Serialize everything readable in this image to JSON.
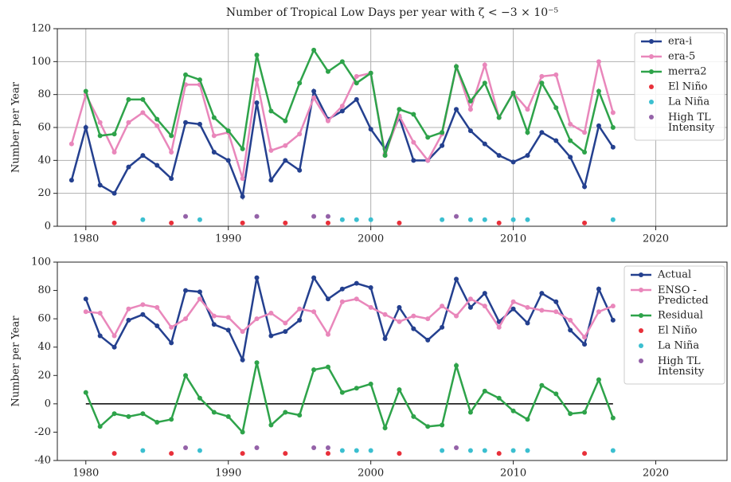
{
  "chart_data": [
    {
      "type": "line",
      "title": "Number of Tropical Low Days per year with ζ < −3 × 10⁻⁵",
      "ylabel": "Number per Year",
      "xlim": [
        1978,
        2025
      ],
      "xticks": [
        1980,
        1990,
        2000,
        2010,
        2020
      ],
      "ylim": [
        0,
        120
      ],
      "yticks": [
        0,
        20,
        40,
        60,
        80,
        100,
        120
      ],
      "grid": true,
      "legend": "upper right",
      "series": [
        {
          "name": "era-i",
          "type": "line",
          "color": "#24408f",
          "x": [
            1979,
            1980,
            1981,
            1982,
            1983,
            1984,
            1985,
            1986,
            1987,
            1988,
            1989,
            1990,
            1991,
            1992,
            1993,
            1994,
            1995,
            1996,
            1997,
            1998,
            1999,
            2000,
            2001,
            2002,
            2003,
            2004,
            2005,
            2006,
            2007,
            2008,
            2009,
            2010,
            2011,
            2012,
            2013,
            2014,
            2015,
            2016,
            2017
          ],
          "values": [
            28,
            60,
            25,
            20,
            36,
            43,
            37,
            29,
            63,
            62,
            45,
            40,
            18,
            75,
            28,
            40,
            34,
            82,
            65,
            70,
            77,
            59,
            47,
            66,
            40,
            40,
            49,
            71,
            58,
            50,
            43,
            39,
            43,
            57,
            52,
            42,
            24,
            61,
            48
          ]
        },
        {
          "name": "era-5",
          "type": "line",
          "color": "#e987bb",
          "x": [
            1979,
            1980,
            1981,
            1982,
            1983,
            1984,
            1985,
            1986,
            1987,
            1988,
            1989,
            1990,
            1991,
            1992,
            1993,
            1994,
            1995,
            1996,
            1997,
            1998,
            1999,
            2000,
            2001,
            2002,
            2003,
            2004,
            2005,
            2006,
            2007,
            2008,
            2009,
            2010,
            2011,
            2012,
            2013,
            2014,
            2015,
            2016,
            2017
          ],
          "values": [
            50,
            80,
            63,
            45,
            63,
            69,
            61,
            45,
            86,
            86,
            55,
            57,
            29,
            89,
            46,
            49,
            56,
            78,
            64,
            73,
            91,
            93,
            44,
            67,
            51,
            40,
            56,
            97,
            71,
            98,
            66,
            81,
            71,
            91,
            92,
            62,
            57,
            100,
            69
          ]
        },
        {
          "name": "merra2",
          "type": "line",
          "color": "#2ea34a",
          "x": [
            1980,
            1981,
            1982,
            1983,
            1984,
            1985,
            1986,
            1987,
            1988,
            1989,
            1990,
            1991,
            1992,
            1993,
            1994,
            1995,
            1996,
            1997,
            1998,
            1999,
            2000,
            2001,
            2002,
            2003,
            2004,
            2005,
            2006,
            2007,
            2008,
            2009,
            2010,
            2011,
            2012,
            2013,
            2014,
            2015,
            2016,
            2017
          ],
          "values": [
            82,
            55,
            56,
            77,
            77,
            65,
            55,
            92,
            89,
            66,
            58,
            47,
            104,
            70,
            64,
            87,
            107,
            94,
            100,
            87,
            93,
            43,
            71,
            68,
            54,
            57,
            97,
            76,
            87,
            66,
            81,
            57,
            87,
            72,
            52,
            45,
            82,
            60
          ]
        },
        {
          "name": "El Niño",
          "type": "scatter",
          "color": "#e8303a",
          "x": [
            1982,
            1986,
            1991,
            1994,
            1997,
            2002,
            2009,
            2015
          ],
          "values": [
            2,
            2,
            2,
            2,
            2,
            2,
            2,
            2
          ]
        },
        {
          "name": "La Niña",
          "type": "scatter",
          "color": "#3bbfd0",
          "x": [
            1984,
            1988,
            1998,
            1999,
            2000,
            2005,
            2007,
            2008,
            2010,
            2011,
            2017
          ],
          "values": [
            4,
            4,
            4,
            4,
            4,
            4,
            4,
            4,
            4,
            4,
            4
          ]
        },
        {
          "name": "High TL\nIntensity",
          "type": "scatter",
          "color": "#9462a8",
          "x": [
            1987,
            1992,
            1996,
            1997,
            2006
          ],
          "values": [
            6,
            6,
            6,
            6,
            6
          ]
        }
      ]
    },
    {
      "type": "line",
      "ylabel": "Number per Year",
      "xlim": [
        1978,
        2025
      ],
      "xticks": [
        1980,
        1990,
        2000,
        2010,
        2020
      ],
      "ylim": [
        -40,
        100
      ],
      "yticks": [
        -40,
        -20,
        0,
        20,
        40,
        60,
        80,
        100
      ],
      "grid": false,
      "legend": "upper right",
      "hline": 0,
      "series": [
        {
          "name": "Actual",
          "type": "line",
          "color": "#24408f",
          "x": [
            1980,
            1981,
            1982,
            1983,
            1984,
            1985,
            1986,
            1987,
            1988,
            1989,
            1990,
            1991,
            1992,
            1993,
            1994,
            1995,
            1996,
            1997,
            1998,
            1999,
            2000,
            2001,
            2002,
            2003,
            2004,
            2005,
            2006,
            2007,
            2008,
            2009,
            2010,
            2011,
            2012,
            2013,
            2014,
            2015,
            2016,
            2017
          ],
          "values": [
            74,
            48,
            40,
            59,
            63,
            55,
            43,
            80,
            79,
            56,
            52,
            31,
            89,
            48,
            51,
            59,
            89,
            74,
            81,
            85,
            82,
            46,
            68,
            53,
            45,
            54,
            88,
            68,
            78,
            58,
            67,
            57,
            78,
            72,
            52,
            42,
            81,
            59
          ]
        },
        {
          "name": "ENSO -\nPredicted",
          "type": "line",
          "color": "#e987bb",
          "x": [
            1980,
            1981,
            1982,
            1983,
            1984,
            1985,
            1986,
            1987,
            1988,
            1989,
            1990,
            1991,
            1992,
            1993,
            1994,
            1995,
            1996,
            1997,
            1998,
            1999,
            2000,
            2001,
            2002,
            2003,
            2004,
            2005,
            2006,
            2007,
            2008,
            2009,
            2010,
            2011,
            2012,
            2013,
            2014,
            2015,
            2016,
            2017
          ],
          "values": [
            65,
            64,
            48,
            67,
            70,
            68,
            54,
            60,
            74,
            62,
            61,
            51,
            60,
            64,
            57,
            67,
            65,
            49,
            72,
            74,
            68,
            63,
            58,
            62,
            60,
            69,
            62,
            74,
            69,
            54,
            72,
            68,
            66,
            65,
            59,
            47,
            65,
            69
          ]
        },
        {
          "name": "Residual",
          "type": "line",
          "color": "#2ea34a",
          "x": [
            1980,
            1981,
            1982,
            1983,
            1984,
            1985,
            1986,
            1987,
            1988,
            1989,
            1990,
            1991,
            1992,
            1993,
            1994,
            1995,
            1996,
            1997,
            1998,
            1999,
            2000,
            2001,
            2002,
            2003,
            2004,
            2005,
            2006,
            2007,
            2008,
            2009,
            2010,
            2011,
            2012,
            2013,
            2014,
            2015,
            2016,
            2017
          ],
          "values": [
            8,
            -16,
            -7,
            -9,
            -7,
            -13,
            -11,
            20,
            4,
            -6,
            -9,
            -20,
            29,
            -15,
            -6,
            -8,
            24,
            26,
            8,
            11,
            14,
            -17,
            10,
            -9,
            -16,
            -15,
            27,
            -6,
            9,
            4,
            -5,
            -11,
            13,
            7,
            -7,
            -6,
            17,
            -10
          ]
        },
        {
          "name": "El Niño",
          "type": "scatter",
          "color": "#e8303a",
          "x": [
            1982,
            1986,
            1991,
            1994,
            1997,
            2002,
            2009,
            2015
          ],
          "values": [
            -35,
            -35,
            -35,
            -35,
            -35,
            -35,
            -35,
            -35
          ]
        },
        {
          "name": "La Niña",
          "type": "scatter",
          "color": "#3bbfd0",
          "x": [
            1984,
            1988,
            1998,
            1999,
            2000,
            2005,
            2007,
            2008,
            2010,
            2011,
            2017
          ],
          "values": [
            -33,
            -33,
            -33,
            -33,
            -33,
            -33,
            -33,
            -33,
            -33,
            -33,
            -33
          ]
        },
        {
          "name": "High TL\nIntensity",
          "type": "scatter",
          "color": "#9462a8",
          "x": [
            1987,
            1992,
            1996,
            1997,
            2006
          ],
          "values": [
            -31,
            -31,
            -31,
            -31,
            -31
          ]
        }
      ]
    }
  ]
}
